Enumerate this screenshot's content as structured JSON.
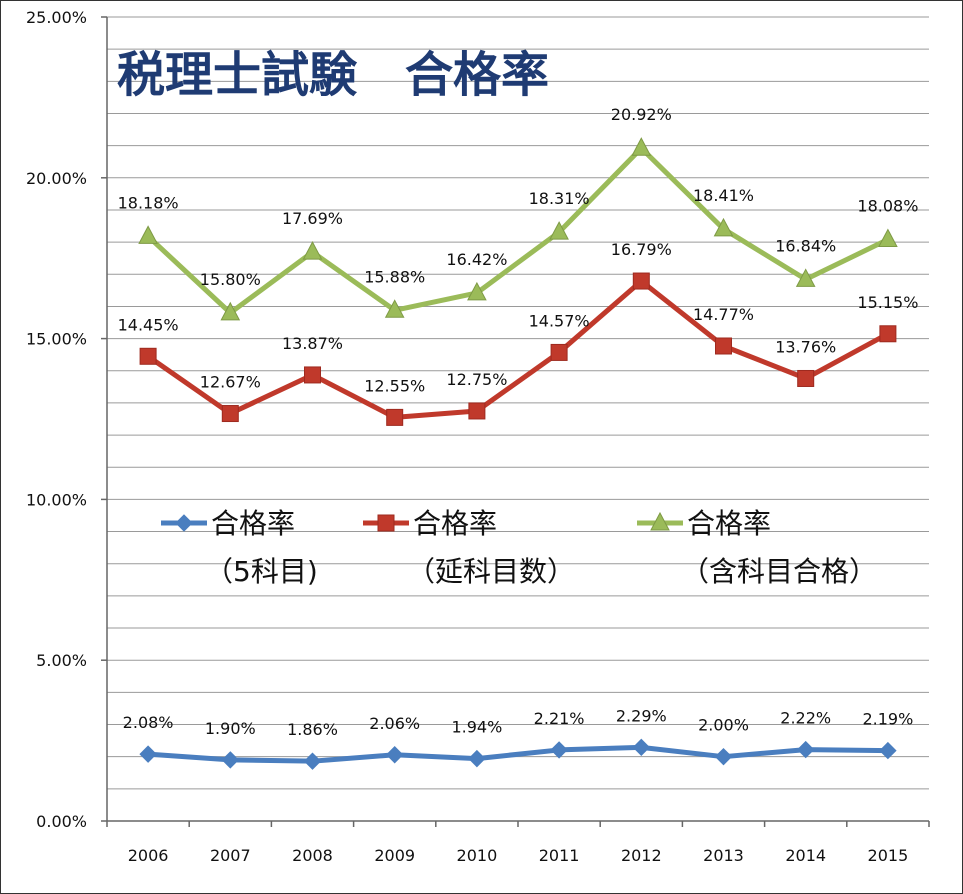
{
  "chart_data": {
    "type": "line",
    "title": "税理士試験　合格率",
    "categories": [
      "2006",
      "2007",
      "2008",
      "2009",
      "2010",
      "2011",
      "2012",
      "2013",
      "2014",
      "2015"
    ],
    "ylim": [
      0,
      25
    ],
    "yticks": [
      "0.00%",
      "5.00%",
      "10.00%",
      "15.00%",
      "20.00%",
      "25.00%"
    ],
    "grid": true,
    "series": [
      {
        "name_line1": "合格率",
        "name_line2": "（5科目)",
        "color": "#4a7ebf",
        "marker": "diamond",
        "values": [
          2.08,
          1.9,
          1.86,
          2.06,
          1.94,
          2.21,
          2.29,
          2.0,
          2.22,
          2.19
        ],
        "labels": [
          "2.08%",
          "1.90%",
          "1.86%",
          "2.06%",
          "1.94%",
          "2.21%",
          "2.29%",
          "2.00%",
          "2.22%",
          "2.19%"
        ]
      },
      {
        "name_line1": "合格率",
        "name_line2": "（延科目数）",
        "color": "#c0392b",
        "marker": "square",
        "values": [
          14.45,
          12.67,
          13.87,
          12.55,
          12.75,
          14.57,
          16.79,
          14.77,
          13.76,
          15.15
        ],
        "labels": [
          "14.45%",
          "12.67%",
          "13.87%",
          "12.55%",
          "12.75%",
          "14.57%",
          "16.79%",
          "14.77%",
          "13.76%",
          "15.15%"
        ]
      },
      {
        "name_line1": "合格率",
        "name_line2": "（含科目合格）",
        "color": "#9bbb59",
        "marker": "triangle",
        "values": [
          18.18,
          15.8,
          17.69,
          15.88,
          16.42,
          18.31,
          20.92,
          18.41,
          16.84,
          18.08
        ],
        "labels": [
          "18.18%",
          "15.80%",
          "17.69%",
          "15.88%",
          "16.42%",
          "18.31%",
          "20.92%",
          "18.41%",
          "16.84%",
          "18.08%"
        ]
      }
    ]
  }
}
